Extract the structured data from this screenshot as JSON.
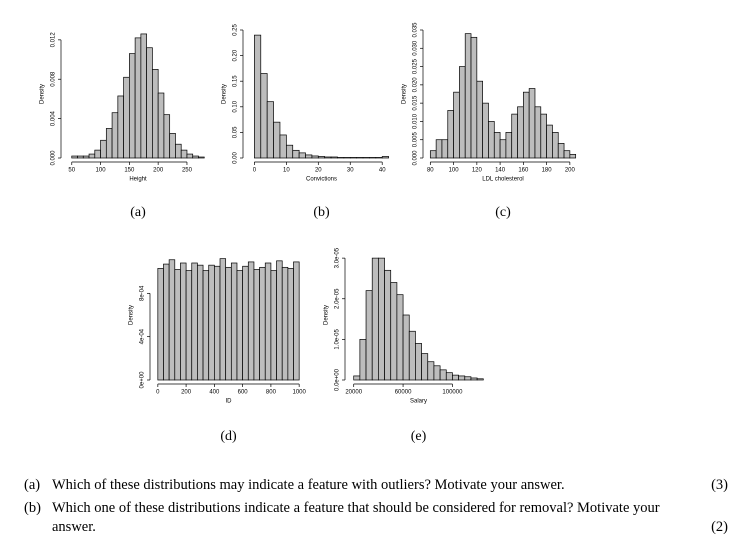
{
  "chart_data": [
    {
      "type": "histogram",
      "panel": "(a)",
      "x_label": "Height",
      "y_label": "Density",
      "bins": [
        50,
        60,
        70,
        80,
        90,
        100,
        110,
        120,
        130,
        140,
        150,
        160,
        170,
        180,
        190,
        200,
        210,
        220,
        230,
        240,
        250,
        260,
        270,
        280
      ],
      "values": [
        0.0002,
        0.0002,
        0.0002,
        0.0004,
        0.0008,
        0.0018,
        0.003,
        0.0046,
        0.0063,
        0.0082,
        0.0106,
        0.0122,
        0.0126,
        0.0112,
        0.009,
        0.0066,
        0.0044,
        0.0025,
        0.0014,
        0.0008,
        0.0004,
        0.0002,
        0.0001
      ],
      "color": "#bdbdbd",
      "xlim": [
        40,
        290
      ],
      "ylim": [
        0,
        0.013
      ],
      "xticks": [
        50,
        100,
        150,
        200,
        250
      ],
      "yticks": [
        {
          "value": 0,
          "label": "0.000"
        },
        {
          "value": 0.004,
          "label": "0.004"
        },
        {
          "value": 0.008,
          "label": "0.008"
        },
        {
          "value": 0.012,
          "label": "0.012"
        }
      ]
    },
    {
      "type": "histogram",
      "panel": "(b)",
      "x_label": "Convictions",
      "y_label": "Density",
      "bins": [
        0,
        2,
        4,
        6,
        8,
        10,
        12,
        14,
        16,
        18,
        20,
        22,
        24,
        26,
        28,
        30,
        32,
        34,
        36,
        38,
        40,
        42
      ],
      "values": [
        0.24,
        0.165,
        0.11,
        0.07,
        0.045,
        0.025,
        0.015,
        0.01,
        0.006,
        0.004,
        0.003,
        0.002,
        0.002,
        0.001,
        0.001,
        0.001,
        0.001,
        0.001,
        0.001,
        0.001,
        0.003
      ],
      "color": "#bdbdbd",
      "xlim": [
        -2,
        44
      ],
      "ylim": [
        0,
        0.25
      ],
      "xticks": [
        0,
        10,
        20,
        30,
        40
      ],
      "yticks": [
        {
          "value": 0,
          "label": "0.00"
        },
        0.05,
        {
          "value": 0.1,
          "label": "0.10"
        },
        0.15,
        {
          "value": 0.2,
          "label": "0.20"
        },
        0.25
      ]
    },
    {
      "type": "histogram",
      "panel": "(c)",
      "x_label": "LDL cholesterol",
      "y_label": "Density",
      "bins": [
        80,
        85,
        90,
        95,
        100,
        105,
        110,
        115,
        120,
        125,
        130,
        135,
        140,
        145,
        150,
        155,
        160,
        165,
        170,
        175,
        180,
        185,
        190,
        195,
        200,
        205
      ],
      "values": [
        0.002,
        0.005,
        0.005,
        0.013,
        0.018,
        0.025,
        0.034,
        0.033,
        0.021,
        0.015,
        0.01,
        0.007,
        0.005,
        0.007,
        0.012,
        0.014,
        0.018,
        0.019,
        0.014,
        0.012,
        0.009,
        0.007,
        0.004,
        0.002,
        0.001
      ],
      "color": "#bdbdbd",
      "xlim": [
        78,
        207
      ],
      "ylim": [
        0,
        0.035
      ],
      "xticks": [
        80,
        100,
        120,
        140,
        160,
        180,
        200
      ],
      "yticks": [
        {
          "value": 0,
          "label": "0.000"
        },
        0.005,
        {
          "value": 0.01,
          "label": "0.010"
        },
        0.015,
        {
          "value": 0.02,
          "label": "0.020"
        },
        0.025,
        {
          "value": 0.03,
          "label": "0.030"
        },
        0.035
      ]
    },
    {
      "type": "histogram",
      "panel": "(d)",
      "x_label": "ID",
      "y_label": "Density",
      "bins": [
        0,
        40,
        80,
        120,
        160,
        200,
        240,
        280,
        320,
        360,
        400,
        440,
        480,
        520,
        560,
        600,
        640,
        680,
        720,
        760,
        800,
        840,
        880,
        920,
        960,
        1000
      ],
      "values": [
        0.00103,
        0.00107,
        0.00111,
        0.00102,
        0.00108,
        0.00101,
        0.00108,
        0.00106,
        0.00101,
        0.00106,
        0.00105,
        0.00112,
        0.00104,
        0.00108,
        0.00101,
        0.00105,
        0.00109,
        0.00102,
        0.00104,
        0.00108,
        0.00101,
        0.0011,
        0.00104,
        0.00103,
        0.00109
      ],
      "color": "#bdbdbd",
      "xlim": [
        -20,
        1020
      ],
      "ylim": [
        0,
        0.0012
      ],
      "xticks": [
        0,
        200,
        400,
        600,
        800,
        1000
      ],
      "yticks": [
        {
          "value": 0,
          "label": "0e+00"
        },
        {
          "value": 0.0004,
          "label": "4e-04"
        },
        {
          "value": 0.0008,
          "label": "8e-04"
        }
      ]
    },
    {
      "type": "histogram",
      "panel": "(e)",
      "x_label": "Salary",
      "y_label": "Density",
      "bins": [
        20000,
        25000,
        30000,
        35000,
        40000,
        45000,
        50000,
        55000,
        60000,
        65000,
        70000,
        75000,
        80000,
        85000,
        90000,
        95000,
        100000,
        105000,
        110000,
        115000,
        120000,
        125000
      ],
      "values": [
        1e-06,
        1e-05,
        2.2e-05,
        3e-05,
        3e-05,
        2.7e-05,
        2.4e-05,
        2.1e-05,
        1.6e-05,
        1.2e-05,
        9e-06,
        6.5e-06,
        4.5e-06,
        3.5e-06,
        2.5e-06,
        1.8e-06,
        1.2e-06,
        1e-06,
        8e-07,
        5e-07,
        3e-07
      ],
      "color": "#bdbdbd",
      "xlim": [
        17000,
        128000
      ],
      "ylim": [
        0,
        3.2e-05
      ],
      "xticks": [
        20000,
        60000,
        100000
      ],
      "yticks": [
        {
          "value": 0,
          "label": "0.0e+00"
        },
        {
          "value": 1e-05,
          "label": "1.0e-05"
        },
        {
          "value": 2e-05,
          "label": "2.0e-05"
        },
        {
          "value": 3e-05,
          "label": "3.0e-05"
        }
      ]
    }
  ],
  "questions": [
    {
      "label": "(a)",
      "text": "Which of these distributions may indicate a feature with outliers? Motivate your answer.",
      "marks": "(3)"
    },
    {
      "label": "(b)",
      "text": "Which one of these distributions indicate a feature that should be considered for removal? Motivate your answer.",
      "marks": "(2)"
    }
  ]
}
